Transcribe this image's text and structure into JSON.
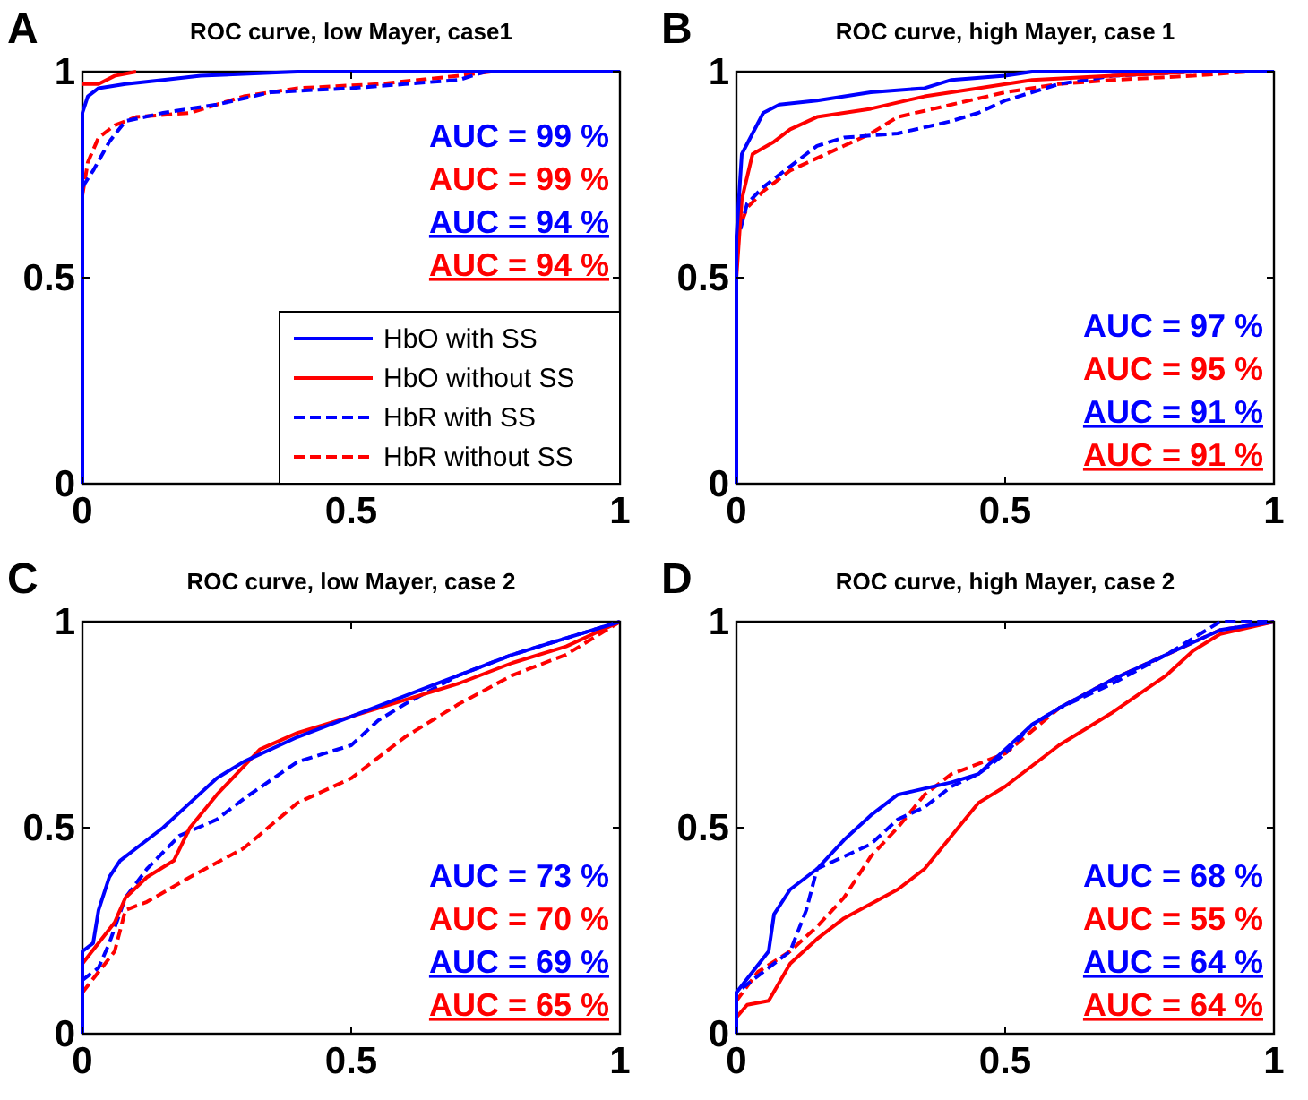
{
  "chart_data": [
    {
      "type": "line",
      "title": "ROC curve, low Mayer, case1",
      "annotations": [
        "A",
        "AUC = 99 %",
        "AUC = 99 %",
        "AUC = 94 %",
        "AUC = 94 %"
      ],
      "xlim": [
        0,
        1
      ],
      "ylim": [
        0,
        1
      ],
      "xticks": [
        0,
        0.5,
        1
      ],
      "yticks": [
        0,
        0.5,
        1
      ],
      "grid": false,
      "legend": "bottom right",
      "series": [
        {
          "name": "HbO with SS",
          "color": "#0000ff",
          "line_style": "solid",
          "x": [
            0,
            0,
            0.01,
            0.03,
            0.08,
            0.15,
            0.22,
            0.4,
            1
          ],
          "values": [
            0,
            0.9,
            0.94,
            0.96,
            0.97,
            0.98,
            0.99,
            1,
            1
          ]
        },
        {
          "name": "HbO without SS",
          "color": "#ff0000",
          "line_style": "solid",
          "x": [
            0,
            0.03,
            0.06,
            0.1
          ],
          "values": [
            0.97,
            0.97,
            0.99,
            1
          ]
        },
        {
          "name": "HbR with SS",
          "color": "#0000ff",
          "line_style": "dashed",
          "x": [
            0,
            0.02,
            0.05,
            0.08,
            0.15,
            0.25,
            0.35,
            0.5,
            0.6,
            0.7,
            0.75
          ],
          "values": [
            0.72,
            0.76,
            0.83,
            0.88,
            0.9,
            0.92,
            0.95,
            0.96,
            0.97,
            0.98,
            1
          ]
        },
        {
          "name": "HbR without SS",
          "color": "#ff0000",
          "line_style": "dashed",
          "x": [
            0,
            0.01,
            0.03,
            0.06,
            0.1,
            0.2,
            0.3,
            0.4,
            0.55,
            0.7,
            0.76
          ],
          "values": [
            0.7,
            0.78,
            0.84,
            0.87,
            0.89,
            0.9,
            0.94,
            0.96,
            0.97,
            0.99,
            1
          ]
        }
      ]
    },
    {
      "type": "line",
      "title": "ROC curve, high Mayer, case 1",
      "annotations": [
        "B",
        "AUC = 97 %",
        "AUC = 95 %",
        "AUC = 91 %",
        "AUC = 91 %"
      ],
      "xlim": [
        0,
        1
      ],
      "ylim": [
        0,
        1
      ],
      "xticks": [
        0,
        0.5,
        1
      ],
      "yticks": [
        0,
        0.5,
        1
      ],
      "grid": false,
      "series": [
        {
          "color": "#0000ff",
          "line_style": "solid",
          "x": [
            0,
            0,
            0.01,
            0.03,
            0.05,
            0.08,
            0.15,
            0.25,
            0.35,
            0.4,
            0.5,
            0.55,
            1
          ],
          "values": [
            0,
            0.6,
            0.8,
            0.85,
            0.9,
            0.92,
            0.93,
            0.95,
            0.96,
            0.98,
            0.99,
            1,
            1
          ]
        },
        {
          "color": "#ff0000",
          "line_style": "solid",
          "x": [
            0,
            0.01,
            0.03,
            0.07,
            0.1,
            0.15,
            0.25,
            0.35,
            0.45,
            0.55,
            0.7,
            0.85
          ],
          "values": [
            0.5,
            0.69,
            0.8,
            0.83,
            0.86,
            0.89,
            0.91,
            0.94,
            0.96,
            0.98,
            0.99,
            1
          ]
        },
        {
          "color": "#0000ff",
          "line_style": "dashed",
          "x": [
            0,
            0.02,
            0.05,
            0.1,
            0.15,
            0.2,
            0.3,
            0.4,
            0.45,
            0.5,
            0.6,
            0.7,
            0.85
          ],
          "values": [
            0.58,
            0.68,
            0.72,
            0.77,
            0.82,
            0.84,
            0.85,
            0.88,
            0.9,
            0.93,
            0.97,
            0.99,
            1
          ]
        },
        {
          "color": "#ff0000",
          "line_style": "dashed",
          "x": [
            0,
            0.02,
            0.05,
            0.1,
            0.2,
            0.25,
            0.3,
            0.4,
            0.5,
            0.6,
            0.7,
            0.85,
            0.95
          ],
          "values": [
            0.6,
            0.67,
            0.71,
            0.76,
            0.82,
            0.85,
            0.89,
            0.92,
            0.95,
            0.97,
            0.98,
            0.99,
            1
          ]
        }
      ]
    },
    {
      "type": "line",
      "title": "ROC curve, low Mayer, case 2",
      "annotations": [
        "C",
        "AUC = 73 %",
        "AUC = 70 %",
        "AUC = 69 %",
        "AUC = 65 %"
      ],
      "xlim": [
        0,
        1
      ],
      "ylim": [
        0,
        1
      ],
      "xticks": [
        0,
        0.5,
        1
      ],
      "yticks": [
        0,
        0.5,
        1
      ],
      "grid": false,
      "series": [
        {
          "color": "#0000ff",
          "line_style": "solid",
          "x": [
            0,
            0,
            0.02,
            0.03,
            0.05,
            0.07,
            0.1,
            0.15,
            0.2,
            0.25,
            0.3,
            0.4,
            0.5,
            0.6,
            0.7,
            0.8,
            0.9,
            1
          ],
          "values": [
            0,
            0.2,
            0.22,
            0.3,
            0.38,
            0.42,
            0.45,
            0.5,
            0.56,
            0.62,
            0.66,
            0.72,
            0.77,
            0.82,
            0.87,
            0.92,
            0.96,
            1
          ]
        },
        {
          "color": "#ff0000",
          "line_style": "solid",
          "x": [
            0,
            0.03,
            0.06,
            0.08,
            0.12,
            0.17,
            0.2,
            0.25,
            0.33,
            0.4,
            0.5,
            0.6,
            0.7,
            0.8,
            0.9,
            1
          ],
          "values": [
            0.17,
            0.22,
            0.27,
            0.33,
            0.38,
            0.42,
            0.5,
            0.58,
            0.69,
            0.73,
            0.77,
            0.81,
            0.85,
            0.9,
            0.94,
            1
          ]
        },
        {
          "color": "#0000ff",
          "line_style": "dashed",
          "x": [
            0,
            0.03,
            0.05,
            0.08,
            0.12,
            0.18,
            0.25,
            0.3,
            0.4,
            0.45,
            0.5,
            0.55,
            0.6,
            0.7,
            0.8,
            0.9,
            1
          ],
          "values": [
            0.13,
            0.16,
            0.22,
            0.33,
            0.4,
            0.48,
            0.52,
            0.57,
            0.66,
            0.68,
            0.7,
            0.76,
            0.8,
            0.87,
            0.92,
            0.96,
            1
          ]
        },
        {
          "color": "#ff0000",
          "line_style": "dashed",
          "x": [
            0,
            0.03,
            0.06,
            0.08,
            0.12,
            0.2,
            0.3,
            0.4,
            0.5,
            0.6,
            0.7,
            0.8,
            0.9,
            1
          ],
          "values": [
            0.1,
            0.15,
            0.2,
            0.3,
            0.32,
            0.38,
            0.45,
            0.56,
            0.62,
            0.72,
            0.8,
            0.87,
            0.92,
            1
          ]
        }
      ]
    },
    {
      "type": "line",
      "title": "ROC curve, high Mayer, case 2",
      "annotations": [
        "D",
        "AUC = 68 %",
        "AUC = 55 %",
        "AUC = 64 %",
        "AUC = 64 %"
      ],
      "xlim": [
        0,
        1
      ],
      "ylim": [
        0,
        1
      ],
      "xticks": [
        0,
        0.5,
        1
      ],
      "yticks": [
        0,
        0.5,
        1
      ],
      "grid": false,
      "series": [
        {
          "color": "#0000ff",
          "line_style": "solid",
          "x": [
            0,
            0,
            0.03,
            0.06,
            0.07,
            0.1,
            0.15,
            0.2,
            0.25,
            0.3,
            0.4,
            0.45,
            0.5,
            0.55,
            0.6,
            0.7,
            0.8,
            0.9,
            1
          ],
          "values": [
            0,
            0.1,
            0.15,
            0.2,
            0.29,
            0.35,
            0.4,
            0.47,
            0.53,
            0.58,
            0.61,
            0.63,
            0.69,
            0.75,
            0.79,
            0.86,
            0.92,
            0.98,
            1
          ]
        },
        {
          "color": "#ff0000",
          "line_style": "solid",
          "x": [
            0,
            0,
            0.02,
            0.06,
            0.1,
            0.15,
            0.2,
            0.3,
            0.35,
            0.4,
            0.45,
            0.5,
            0.6,
            0.7,
            0.8,
            0.85,
            0.9,
            1
          ],
          "values": [
            0,
            0.04,
            0.07,
            0.08,
            0.17,
            0.23,
            0.28,
            0.35,
            0.4,
            0.48,
            0.56,
            0.6,
            0.7,
            0.78,
            0.87,
            0.93,
            0.97,
            1
          ]
        },
        {
          "color": "#0000ff",
          "line_style": "dashed",
          "x": [
            0,
            0,
            0.05,
            0.1,
            0.13,
            0.15,
            0.2,
            0.25,
            0.3,
            0.35,
            0.4,
            0.45,
            0.5,
            0.55,
            0.6,
            0.7,
            0.8,
            0.9,
            1
          ],
          "values": [
            0,
            0.1,
            0.15,
            0.2,
            0.3,
            0.4,
            0.43,
            0.46,
            0.52,
            0.55,
            0.6,
            0.63,
            0.68,
            0.75,
            0.79,
            0.85,
            0.92,
            1,
            1
          ]
        },
        {
          "color": "#ff0000",
          "line_style": "dashed",
          "x": [
            0,
            0,
            0.04,
            0.1,
            0.15,
            0.2,
            0.25,
            0.3,
            0.35,
            0.4,
            0.5,
            0.6,
            0.7,
            0.8,
            0.9,
            1
          ],
          "values": [
            0,
            0.08,
            0.15,
            0.2,
            0.26,
            0.33,
            0.43,
            0.5,
            0.58,
            0.63,
            0.68,
            0.79,
            0.86,
            0.92,
            0.98,
            1
          ]
        }
      ]
    }
  ]
}
